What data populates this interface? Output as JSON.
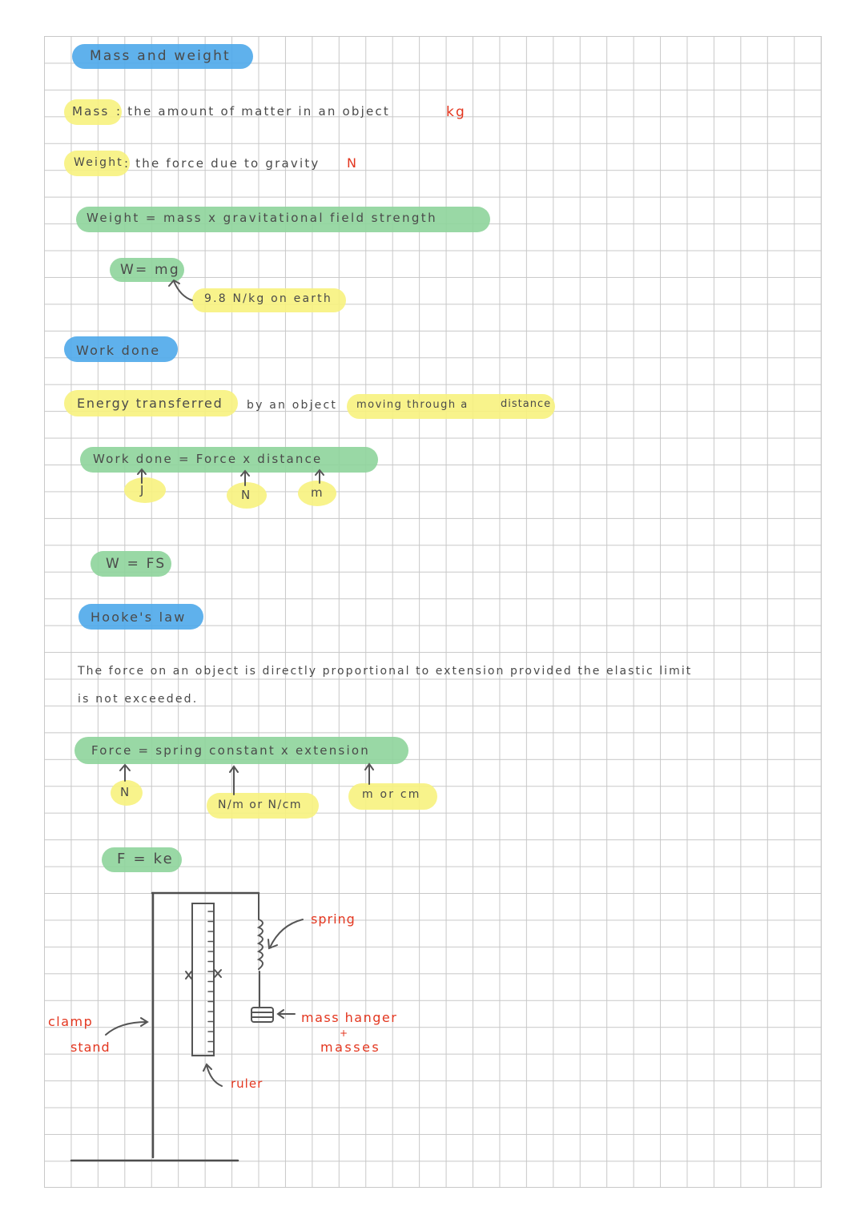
{
  "colors": {
    "heading": "#4ea9ea",
    "formula": "#8ed49b",
    "highlight": "#f7f27e",
    "unit": "#e3361f",
    "ink": "#4a4a4a"
  },
  "mass_weight": {
    "heading": "Mass and weight",
    "mass_term": "Mass",
    "mass_def": ": the amount of matter in an object",
    "mass_unit": "kg",
    "weight_term": "Weight",
    "weight_def": ": the force due to gravity",
    "weight_unit": "N",
    "formula_words": "Weight = mass x gravitational field strength",
    "formula": "W= mg",
    "g_note": "9.8 N/kg on earth"
  },
  "work_done": {
    "heading": "Work done",
    "def_1": "Energy transferred",
    "def_2": "by an object",
    "def_3": "moving through a",
    "def_4": "distance",
    "formula_words": "Work done = Force x distance",
    "units": [
      "J",
      "N",
      "m"
    ],
    "formula": "W = FS"
  },
  "hookes_law": {
    "heading": "Hooke's law",
    "statement_1": "The force on an object is directly proportional to extension provided the elastic limit",
    "statement_2": "is not exceeded.",
    "formula_words": "Force = spring constant x extension",
    "units": [
      "N",
      "N/m or N/cm",
      "m or cm"
    ],
    "formula": "F = ke"
  },
  "diagram": {
    "labels": {
      "spring": "spring",
      "mass_hanger": "mass hanger",
      "plus": "+",
      "masses": "masses",
      "clamp": "clamp",
      "stand": "stand",
      "ruler": "ruler"
    }
  }
}
